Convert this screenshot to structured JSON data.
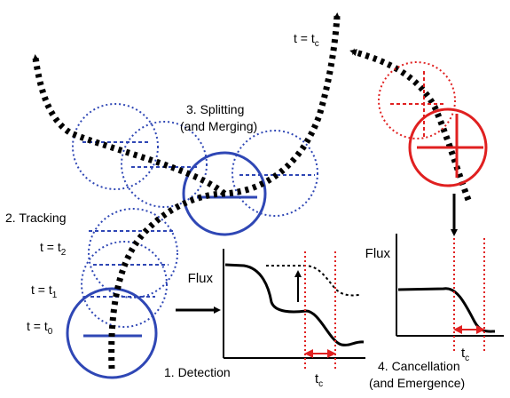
{
  "colors": {
    "blue": "#2f47b5",
    "red": "#e02020",
    "black": "#000000"
  },
  "stages": {
    "detection": "1. Detection",
    "tracking": "2. Tracking",
    "splitting_line1": "3. Splitting",
    "splitting_line2": "(and Merging)",
    "cancellation_line1": "4. Cancellation",
    "cancellation_line2": "(and  Emergence)"
  },
  "time_labels": {
    "t_prefix": "t = t",
    "t0_sub": "0",
    "t1_sub": "1",
    "t2_sub": "2",
    "tc_sub": "c",
    "tc_base": "t",
    "tc_prefix": "t = t"
  },
  "plots": {
    "left_ylabel": "Flux",
    "right_ylabel": "Flux"
  }
}
